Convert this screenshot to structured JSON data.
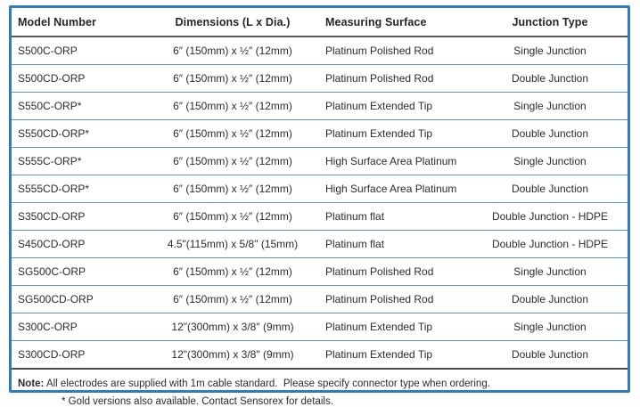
{
  "table": {
    "columns": [
      "Model Number",
      "Dimensions (L x Dia.)",
      "Measuring Surface",
      "Junction Type"
    ],
    "rows": [
      [
        "S500C-ORP",
        "6″ (150mm) x ½″ (12mm)",
        "Platinum Polished Rod",
        "Single Junction"
      ],
      [
        "S500CD-ORP",
        "6″ (150mm) x ½″ (12mm)",
        "Platinum Polished Rod",
        "Double Junction"
      ],
      [
        "S550C-ORP*",
        "6″ (150mm) x ½″ (12mm)",
        "Platinum Extended Tip",
        "Single Junction"
      ],
      [
        "S550CD-ORP*",
        "6″ (150mm) x ½″ (12mm)",
        "Platinum Extended Tip",
        "Double Junction"
      ],
      [
        "S555C-ORP*",
        "6″ (150mm) x ½″ (12mm)",
        "High Surface Area Platinum",
        "Single Junction"
      ],
      [
        "S555CD-ORP*",
        "6″ (150mm) x ½″ (12mm)",
        "High Surface Area Platinum",
        "Double Junction"
      ],
      [
        "S350CD-ORP",
        "6″ (150mm) x ½″ (12mm)",
        "Platinum flat",
        "Double Junction - HDPE"
      ],
      [
        "S450CD-ORP",
        "4.5\"(115mm) x 5/8\" (15mm)",
        "Platinum flat",
        "Double Junction - HDPE"
      ],
      [
        "SG500C-ORP",
        "6″ (150mm) x ½″ (12mm)",
        "Platinum Polished Rod",
        "Single Junction"
      ],
      [
        "SG500CD-ORP",
        "6″ (150mm) x ½″ (12mm)",
        "Platinum Polished Rod",
        "Double Junction"
      ],
      [
        "S300C-ORP",
        "12\"(300mm) x 3/8\" (9mm)",
        "Platinum Extended Tip",
        "Single Junction"
      ],
      [
        "S300CD-ORP",
        "12\"(300mm) x 3/8\" (9mm)",
        "Platinum Extended Tip",
        "Double Junction"
      ]
    ]
  },
  "notes": {
    "note_label": "Note:",
    "note_text": " All electrodes are supplied with 1m cable standard.  Please specify connector type when ordering.",
    "footnote": "* Gold versions also available.  Contact Sensorex for details."
  },
  "colors": {
    "outer_border_blue": "#2e7cb8",
    "row_divider_blue": "#5e96c4",
    "header_divider_dark": "#54565a",
    "text": "#2b2b2d"
  }
}
